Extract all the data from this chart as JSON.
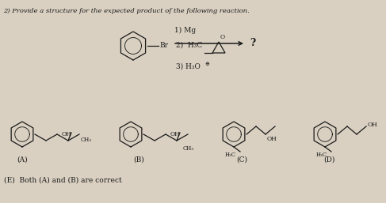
{
  "title": "2) Provide a structure for the expected product of the following reaction.",
  "bg_color": "#d9d0c1",
  "text_color": "#1a1a1a",
  "label_A": "(A)",
  "label_B": "(B)",
  "label_C": "(C)",
  "label_D": "(D)",
  "options_label_E": "(E)  Both (A) and (B) are correct"
}
